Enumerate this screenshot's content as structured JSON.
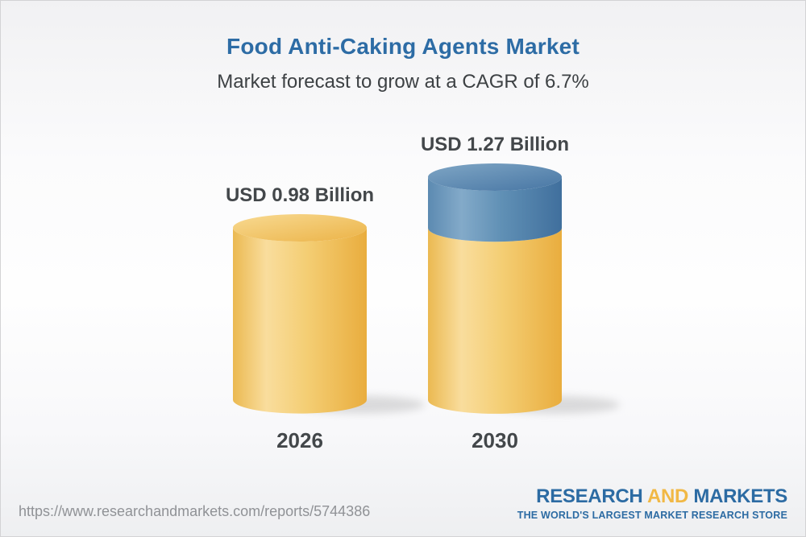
{
  "header": {
    "title": "Food Anti-Caking Agents Market",
    "subtitle": "Market forecast to grow at a CAGR of 6.7%"
  },
  "chart_data": {
    "type": "bar",
    "variant": "3d-cylinder",
    "categories": [
      "2026",
      "2030"
    ],
    "values": [
      0.98,
      1.27
    ],
    "unit": "USD Billion",
    "bar_labels": [
      "USD 0.98 Billion",
      "USD 1.27 Billion"
    ],
    "cagr_percent": 6.7,
    "series": [
      {
        "name": "base",
        "values": [
          0.98,
          0.98
        ],
        "color": "#F3CB6C"
      },
      {
        "name": "growth",
        "values": [
          0,
          0.29
        ],
        "color": "#5E8BB1"
      }
    ],
    "ylim": [
      0,
      1.27
    ],
    "grid": false,
    "legend": "none"
  },
  "footer": {
    "url": "https://www.researchandmarkets.com/reports/5744386",
    "logo": {
      "word1": "RESEARCH",
      "word2": "AND",
      "word3": "MARKETS",
      "tagline": "THE WORLD'S LARGEST MARKET RESEARCH STORE",
      "colors": {
        "blue": "#2C6BA3",
        "gold": "#F1B845"
      }
    }
  },
  "theme": {
    "title_color": "#2D6CA5",
    "subtitle_color": "#3D4144",
    "label_color": "#43474A",
    "background_top": "#F1F1F3",
    "background_bottom": "#EEEFF1"
  }
}
